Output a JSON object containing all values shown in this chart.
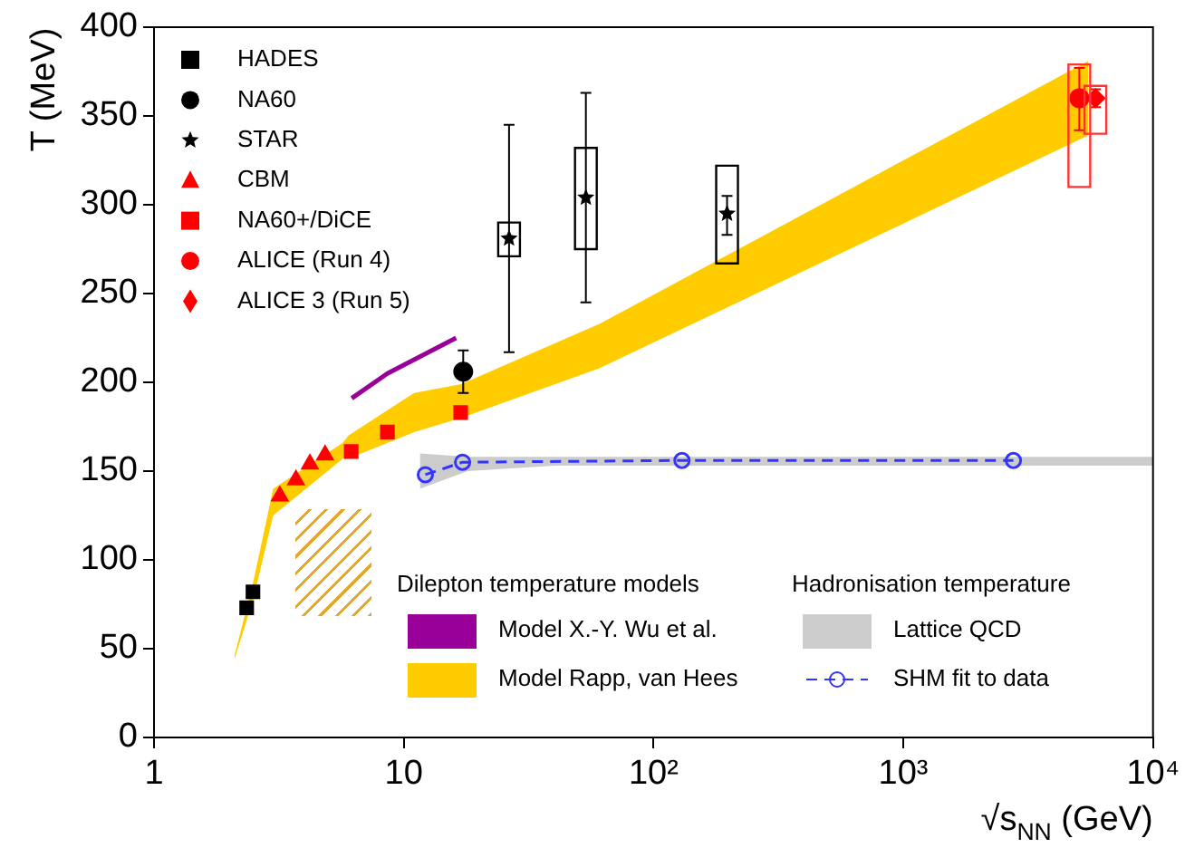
{
  "chart_data": {
    "type": "scatter",
    "xlabel": "√s$_{NN}$ (GeV)",
    "ylabel": "T (MeV)",
    "log": "x",
    "xlim": [
      1,
      10000
    ],
    "xticks": [
      1,
      10,
      {
        "value": 100,
        "label": "10²"
      },
      {
        "value": 1000,
        "label": "10³"
      },
      {
        "value": 10000,
        "label": "10⁴"
      }
    ],
    "ylim": [
      0,
      400
    ],
    "yticks": [
      0,
      50,
      100,
      150,
      200,
      250,
      300,
      350,
      400
    ],
    "legend": "top left",
    "annotations": [
      "Dilepton temperature models",
      "Hadronisation temperature"
    ],
    "series": [
      {
        "name": "HADES",
        "marker": "square",
        "color": "#000000",
        "x": [
          2.35,
          2.49
        ],
        "values": [
          73,
          82
        ]
      },
      {
        "name": "NA60",
        "marker": "circle",
        "color": "#000000",
        "x": [
          17.3
        ],
        "values": [
          206
        ],
        "errors": [
          [
            194,
            218
          ]
        ]
      },
      {
        "name": "STAR",
        "marker": "star",
        "color": "#000000",
        "x": [
          26.4,
          53.6,
          197
        ],
        "values": [
          281,
          304,
          295
        ],
        "errors": [
          [
            217,
            345
          ],
          [
            245,
            363
          ],
          [
            283,
            305
          ]
        ]
      },
      {
        "type": "bar",
        "color": "#000000",
        "x": [
          26.4,
          53.6,
          197
        ],
        "base": [
          271,
          275,
          267
        ],
        "values": [
          19,
          57,
          55
        ]
      },
      {
        "name": "CBM",
        "marker": "triangle",
        "color": "#ff0000",
        "x": [
          3.19,
          3.7,
          4.21,
          4.84
        ],
        "values": [
          136,
          145,
          154,
          159
        ]
      },
      {
        "name": "NA60+/DiCE",
        "marker": "square",
        "color": "#ff0000",
        "x": [
          6.16,
          8.6,
          16.9
        ],
        "values": [
          161,
          172,
          183
        ]
      },
      {
        "name": "ALICE (Run 4)",
        "marker": "circle",
        "color": "#ff0000",
        "x": [
          5070
        ],
        "values": [
          360
        ],
        "errors": [
          [
            342,
            377
          ]
        ]
      },
      {
        "name": "ALICE 3 (Run 5)",
        "marker": "diamond",
        "color": "#ff0000",
        "x": [
          5880
        ],
        "values": [
          360
        ],
        "errors": [
          [
            355,
            365
          ]
        ]
      },
      {
        "type": "bar",
        "color": "#ff3333",
        "x": [
          5070,
          5880
        ],
        "base": [
          310,
          340
        ],
        "values": [
          69,
          27
        ]
      },
      {
        "name": "Model X.-Y. Wu et al.",
        "type": "line",
        "color": "#990099",
        "x": [
          6.19,
          8.6,
          16.2
        ],
        "values": [
          191,
          205,
          225
        ]
      },
      {
        "name": "Model Rapp, van Hees",
        "type": "area",
        "color": "#ffcc00",
        "x": [
          2.1,
          2.5,
          3.0,
          5.7,
          6.0,
          11,
          17,
          61,
          5500
        ],
        "values": [
          null,
          null,
          null,
          null,
          null,
          null,
          null,
          null,
          null
        ],
        "lower": [
          44,
          78,
          125,
          157,
          157,
          172,
          180,
          208,
          339
        ],
        "upper": [
          46,
          88,
          140,
          166,
          170,
          194,
          199,
          233,
          381
        ]
      },
      {
        "name": "Lattice QCD",
        "type": "area",
        "color": "#cccccc",
        "x": [
          11.6,
          18,
          40,
          10000
        ],
        "values": [
          null,
          null,
          null,
          null
        ],
        "lower": [
          140,
          150,
          153,
          153
        ],
        "upper": [
          160,
          158,
          158,
          158
        ]
      },
      {
        "name": "SHM fit to data",
        "type": "line",
        "marker": "circle",
        "line_style": "dashed",
        "color": "#3333ff",
        "x": [
          12.2,
          17.2,
          130,
          2760
        ],
        "values": [
          148,
          155,
          156,
          156
        ]
      }
    ]
  }
}
